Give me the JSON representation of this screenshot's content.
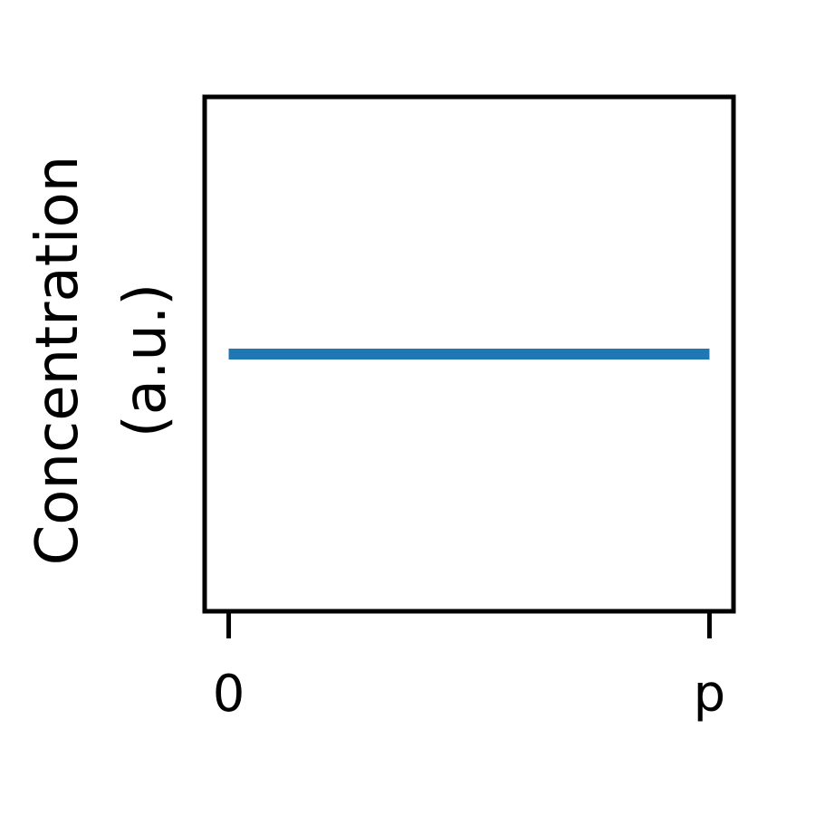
{
  "chart_data": {
    "type": "line",
    "title": "",
    "xlabel": "",
    "ylabel_lines": [
      "Concentration",
      "(a.u.)"
    ],
    "x_ticks": [
      {
        "value": 0,
        "label": "0"
      },
      {
        "value": 1,
        "label": "p"
      }
    ],
    "xlim": [
      -0.05,
      1.05
    ],
    "ylim": [
      0,
      1
    ],
    "series": [
      {
        "x": [
          0,
          1
        ],
        "y": [
          0.5,
          0.5
        ],
        "color": "#1f77b4"
      }
    ],
    "grid": false,
    "legend": "none",
    "y_ticks_shown": false
  }
}
